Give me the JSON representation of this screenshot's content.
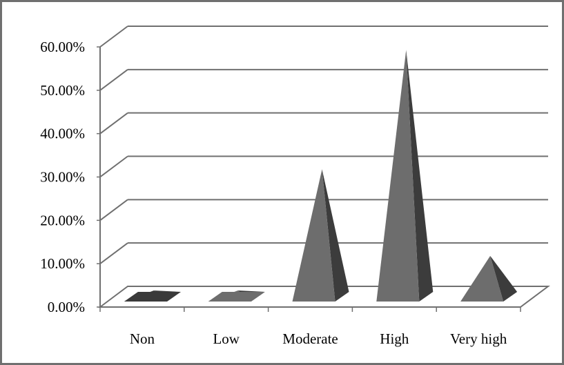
{
  "chart_data": {
    "type": "bar",
    "bar_shape": "pyramid",
    "three_d": true,
    "categories": [
      "Non",
      "Low",
      "Moderate",
      "High",
      "Very high"
    ],
    "values": [
      0.5,
      0.8,
      31,
      58.5,
      11
    ],
    "ylim": [
      0,
      60
    ],
    "yticks": [
      "0.00%",
      "10.00%",
      "20.00%",
      "30.00%",
      "40.00%",
      "50.00%",
      "60.00%"
    ],
    "grid": true,
    "legend": "none",
    "colors": {
      "bar_front": "#6d6d6d",
      "bar_side": "#3c3c3c",
      "bar_dark": "#3a3a3a",
      "grid": "#6f6f6f",
      "floor": "#ffffff"
    }
  }
}
